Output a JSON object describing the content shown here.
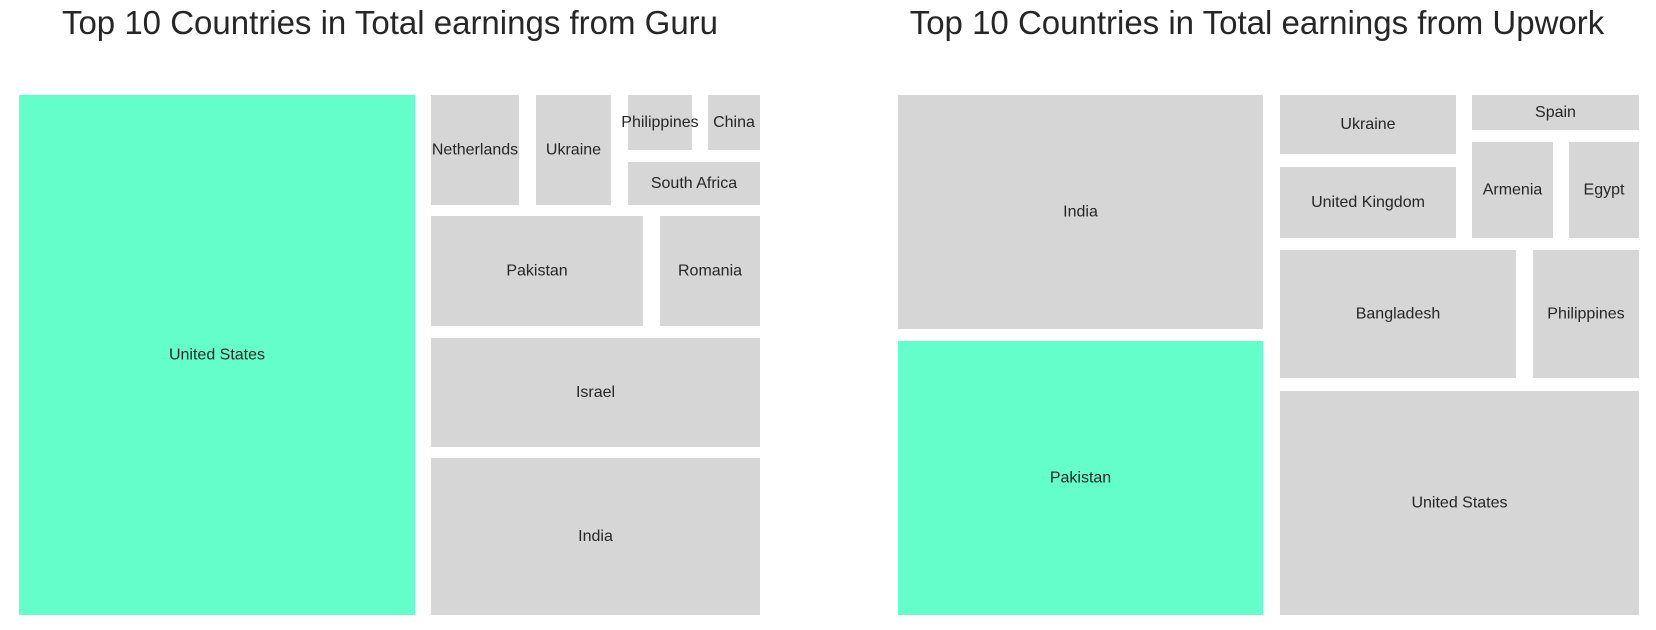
{
  "colors": {
    "highlight": "#64fecb",
    "default": "#d6d6d6",
    "text": "#262626"
  },
  "chart_data": [
    {
      "type": "treemap",
      "title": "Top 10 Countries in Total earnings from Guru",
      "highlight": "United States",
      "items": [
        {
          "label": "United States",
          "value": 37
        },
        {
          "label": "India",
          "value": 9.5
        },
        {
          "label": "Israel",
          "value": 6.7
        },
        {
          "label": "Pakistan",
          "value": 4.3
        },
        {
          "label": "Romania",
          "value": 2.0
        },
        {
          "label": "Ukraine",
          "value": 1.5
        },
        {
          "label": "Netherlands",
          "value": 1.4
        },
        {
          "label": "South Africa",
          "value": 1.3
        },
        {
          "label": "Philippines",
          "value": 0.7
        },
        {
          "label": "China",
          "value": 0.6
        }
      ]
    },
    {
      "type": "treemap",
      "title": "Top 10 Countries in Total earnings from Upwork",
      "highlight": "Pakistan",
      "items": [
        {
          "label": "India",
          "value": 15.2
        },
        {
          "label": "Pakistan",
          "value": 18.0
        },
        {
          "label": "United States",
          "value": 19.5
        },
        {
          "label": "Bangladesh",
          "value": 6.9
        },
        {
          "label": "Philippines",
          "value": 2.9
        },
        {
          "label": "United Kingdom",
          "value": 3.0
        },
        {
          "label": "Ukraine",
          "value": 2.5
        },
        {
          "label": "Armenia",
          "value": 1.5
        },
        {
          "label": "Egypt",
          "value": 1.3
        },
        {
          "label": "Spain",
          "value": 1.1
        }
      ]
    }
  ]
}
